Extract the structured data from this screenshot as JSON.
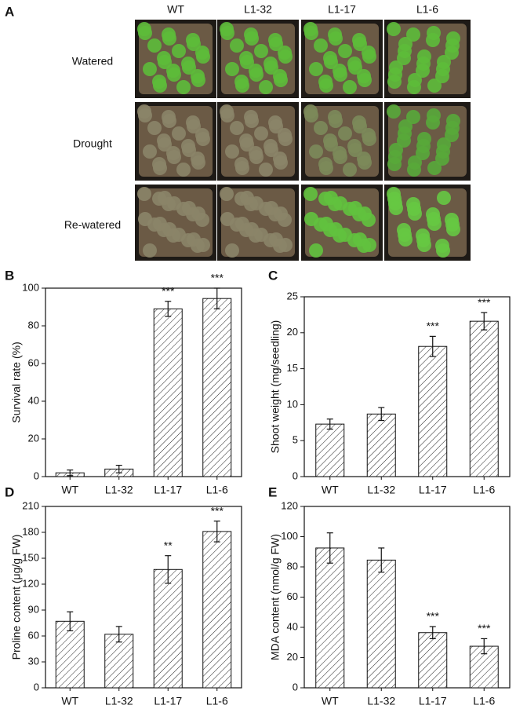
{
  "panel_a": {
    "label": "A",
    "columns": [
      "WT",
      "L1-32",
      "L1-17",
      "L1-6"
    ],
    "rows": [
      "Watered",
      "Drought",
      "Re-watered"
    ]
  },
  "chart_data": [
    {
      "type": "bar",
      "panel_label": "B",
      "y_label": "Survival rate (%)",
      "categories": [
        "WT",
        "L1-32",
        "L1-17",
        "L1-6"
      ],
      "values": [
        2,
        4,
        89,
        94.5
      ],
      "errors": [
        1.5,
        2,
        4,
        5.5
      ],
      "significance": [
        null,
        null,
        "***",
        "***"
      ],
      "ylim": [
        0,
        100
      ],
      "yticks": [
        0,
        20,
        40,
        60,
        80,
        100
      ]
    },
    {
      "type": "bar",
      "panel_label": "C",
      "y_label": "Shoot weight (mg/seedling)",
      "categories": [
        "WT",
        "L1-32",
        "L1-17",
        "L1-6"
      ],
      "values": [
        7.3,
        8.7,
        18.1,
        21.6
      ],
      "errors": [
        0.7,
        0.9,
        1.4,
        1.2
      ],
      "significance": [
        null,
        null,
        "***",
        "***"
      ],
      "ylim": [
        0,
        25
      ],
      "yticks": [
        0,
        5,
        10,
        15,
        20,
        25
      ]
    },
    {
      "type": "bar",
      "panel_label": "D",
      "y_label": "Proline content (μg/g FW)",
      "categories": [
        "WT",
        "L1-32",
        "L1-17",
        "L1-6"
      ],
      "values": [
        77,
        62,
        137,
        181
      ],
      "errors": [
        11,
        9,
        16,
        12
      ],
      "significance": [
        null,
        null,
        "**",
        "***"
      ],
      "ylim": [
        0,
        210
      ],
      "yticks": [
        0,
        30,
        60,
        90,
        120,
        150,
        180,
        210
      ]
    },
    {
      "type": "bar",
      "panel_label": "E",
      "y_label": "MDA content (nmol/g FW)",
      "categories": [
        "WT",
        "L1-32",
        "L1-17",
        "L1-6"
      ],
      "values": [
        92.5,
        84.5,
        36.5,
        27.5
      ],
      "errors": [
        10,
        8,
        4,
        5
      ],
      "significance": [
        null,
        null,
        "***",
        "***"
      ],
      "ylim": [
        0,
        120
      ],
      "yticks": [
        0,
        20,
        40,
        60,
        80,
        100,
        120
      ]
    }
  ]
}
